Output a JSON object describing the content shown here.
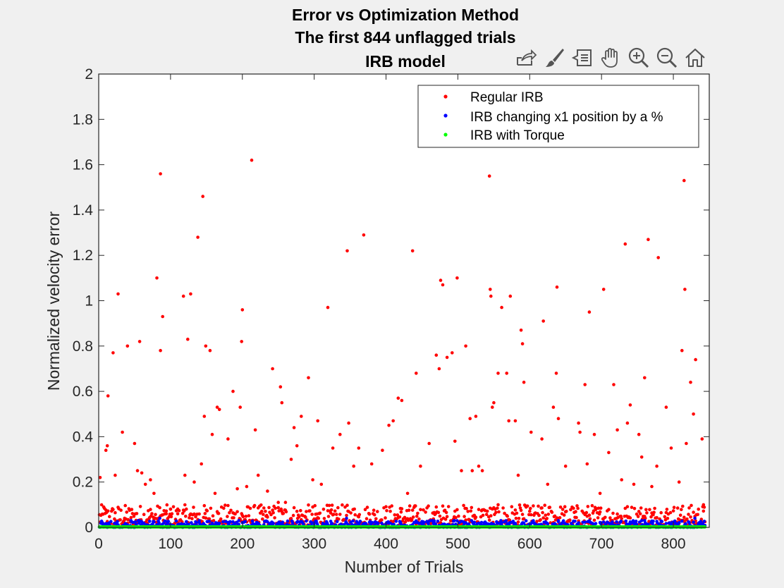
{
  "toolbar": {
    "icons": [
      "export-icon",
      "brush-icon",
      "data-tips-icon",
      "pan-icon",
      "zoom-in-icon",
      "zoom-out-icon",
      "home-icon"
    ]
  },
  "chart_data": {
    "type": "scatter",
    "title_lines": [
      "Error vs Optimization Method",
      "The first 844 unflagged trials",
      "IRB model"
    ],
    "xlabel": "Number of Trials",
    "ylabel": "Normalized velocity error",
    "xlim": [
      0,
      850
    ],
    "ylim": [
      0,
      2
    ],
    "xticks": [
      "0",
      "100",
      "200",
      "300",
      "400",
      "500",
      "600",
      "700",
      "800"
    ],
    "yticks": [
      "0",
      "0.2",
      "0.4",
      "0.6",
      "0.8",
      "1",
      "1.2",
      "1.4",
      "1.6",
      "1.8",
      "2"
    ],
    "grid": false,
    "legend_position": "top-right",
    "n_points": 844,
    "series": [
      {
        "name": "Regular IRB",
        "color": "#ff0000",
        "highlight": [
          [
            2,
            0.22
          ],
          [
            7,
            0.09
          ],
          [
            10,
            0.34
          ],
          [
            12,
            0.36
          ],
          [
            13,
            0.58
          ],
          [
            20,
            0.77
          ],
          [
            23,
            0.23
          ],
          [
            27,
            1.03
          ],
          [
            33,
            0.42
          ],
          [
            40,
            0.8
          ],
          [
            50,
            0.37
          ],
          [
            54,
            0.25
          ],
          [
            57,
            0.82
          ],
          [
            60,
            0.24
          ],
          [
            65,
            0.19
          ],
          [
            72,
            0.21
          ],
          [
            77,
            0.15
          ],
          [
            81,
            1.1
          ],
          [
            86,
            1.56
          ],
          [
            86,
            0.78
          ],
          [
            89,
            0.93
          ],
          [
            94,
            0.06
          ],
          [
            100,
            0.08
          ],
          [
            110,
            0.06
          ],
          [
            118,
            1.02
          ],
          [
            120,
            0.23
          ],
          [
            124,
            0.83
          ],
          [
            128,
            1.03
          ],
          [
            133,
            0.2
          ],
          [
            138,
            1.28
          ],
          [
            143,
            0.28
          ],
          [
            145,
            1.46
          ],
          [
            147,
            0.49
          ],
          [
            149,
            0.8
          ],
          [
            155,
            0.78
          ],
          [
            158,
            0.41
          ],
          [
            162,
            0.15
          ],
          [
            165,
            0.53
          ],
          [
            168,
            0.52
          ],
          [
            180,
            0.39
          ],
          [
            187,
            0.6
          ],
          [
            193,
            0.17
          ],
          [
            197,
            0.53
          ],
          [
            199,
            0.82
          ],
          [
            200,
            0.96
          ],
          [
            206,
            0.18
          ],
          [
            213,
            1.62
          ],
          [
            218,
            0.43
          ],
          [
            222,
            0.23
          ],
          [
            235,
            0.16
          ],
          [
            242,
            0.7
          ],
          [
            250,
            0.11
          ],
          [
            253,
            0.62
          ],
          [
            255,
            0.55
          ],
          [
            260,
            0.11
          ],
          [
            268,
            0.3
          ],
          [
            272,
            0.44
          ],
          [
            276,
            0.36
          ],
          [
            282,
            0.49
          ],
          [
            292,
            0.66
          ],
          [
            298,
            0.21
          ],
          [
            305,
            0.47
          ],
          [
            310,
            0.19
          ],
          [
            319,
            0.97
          ],
          [
            326,
            0.35
          ],
          [
            336,
            0.41
          ],
          [
            346,
            1.22
          ],
          [
            348,
            0.46
          ],
          [
            355,
            0.27
          ],
          [
            362,
            0.35
          ],
          [
            369,
            1.29
          ],
          [
            380,
            0.28
          ],
          [
            395,
            0.34
          ],
          [
            404,
            0.45
          ],
          [
            410,
            0.47
          ],
          [
            417,
            0.57
          ],
          [
            422,
            0.56
          ],
          [
            430,
            0.15
          ],
          [
            437,
            1.22
          ],
          [
            442,
            0.68
          ],
          [
            448,
            0.27
          ],
          [
            460,
            0.37
          ],
          [
            470,
            0.76
          ],
          [
            474,
            0.7
          ],
          [
            476,
            1.09
          ],
          [
            479,
            1.07
          ],
          [
            485,
            0.75
          ],
          [
            492,
            0.77
          ],
          [
            496,
            0.38
          ],
          [
            499,
            1.1
          ],
          [
            505,
            0.25
          ],
          [
            511,
            0.8
          ],
          [
            517,
            0.48
          ],
          [
            520,
            0.25
          ],
          [
            525,
            0.49
          ],
          [
            529,
            0.27
          ],
          [
            534,
            0.25
          ],
          [
            544,
            1.55
          ],
          [
            545,
            1.05
          ],
          [
            546,
            1.02
          ],
          [
            548,
            0.53
          ],
          [
            550,
            0.55
          ],
          [
            556,
            0.68
          ],
          [
            561,
            0.97
          ],
          [
            568,
            0.68
          ],
          [
            571,
            0.47
          ],
          [
            573,
            1.02
          ],
          [
            580,
            0.47
          ],
          [
            584,
            0.23
          ],
          [
            588,
            0.87
          ],
          [
            590,
            0.81
          ],
          [
            592,
            0.64
          ],
          [
            602,
            0.42
          ],
          [
            617,
            0.39
          ],
          [
            619,
            0.91
          ],
          [
            625,
            0.19
          ],
          [
            633,
            0.53
          ],
          [
            637,
            0.68
          ],
          [
            638,
            1.06
          ],
          [
            640,
            0.48
          ],
          [
            650,
            0.27
          ],
          [
            668,
            0.46
          ],
          [
            670,
            0.42
          ],
          [
            677,
            0.63
          ],
          [
            680,
            0.28
          ],
          [
            683,
            0.95
          ],
          [
            690,
            0.41
          ],
          [
            698,
            0.15
          ],
          [
            703,
            1.05
          ],
          [
            710,
            0.33
          ],
          [
            717,
            0.63
          ],
          [
            722,
            0.43
          ],
          [
            728,
            0.21
          ],
          [
            733,
            1.25
          ],
          [
            736,
            0.46
          ],
          [
            740,
            0.54
          ],
          [
            745,
            0.19
          ],
          [
            752,
            0.41
          ],
          [
            756,
            0.31
          ],
          [
            760,
            0.66
          ],
          [
            765,
            1.27
          ],
          [
            770,
            0.18
          ],
          [
            777,
            0.27
          ],
          [
            779,
            1.19
          ],
          [
            790,
            0.53
          ],
          [
            797,
            0.35
          ],
          [
            808,
            0.2
          ],
          [
            812,
            0.78
          ],
          [
            815,
            1.53
          ],
          [
            816,
            1.05
          ],
          [
            818,
            0.37
          ],
          [
            824,
            0.64
          ],
          [
            828,
            0.5
          ],
          [
            831,
            0.74
          ],
          [
            840,
            0.39
          ],
          [
            842,
            0.1
          ]
        ],
        "typical_range": [
          0.01,
          0.1
        ]
      },
      {
        "name": "IRB changing x1 position by a %",
        "color": "#0000ff",
        "highlight": [
          [
            45,
            0.03
          ],
          [
            85,
            0.04
          ],
          [
            140,
            0.03
          ],
          [
            195,
            0.03
          ],
          [
            300,
            0.02
          ],
          [
            345,
            0.04
          ],
          [
            420,
            0.02
          ],
          [
            495,
            0.03
          ],
          [
            560,
            0.03
          ],
          [
            640,
            0.03
          ],
          [
            700,
            0.02
          ],
          [
            760,
            0.03
          ],
          [
            830,
            0.04
          ]
        ],
        "typical_range": [
          0.0,
          0.03
        ]
      },
      {
        "name": "IRB with Torque",
        "color": "#00ff00",
        "value": 0.002
      }
    ]
  }
}
